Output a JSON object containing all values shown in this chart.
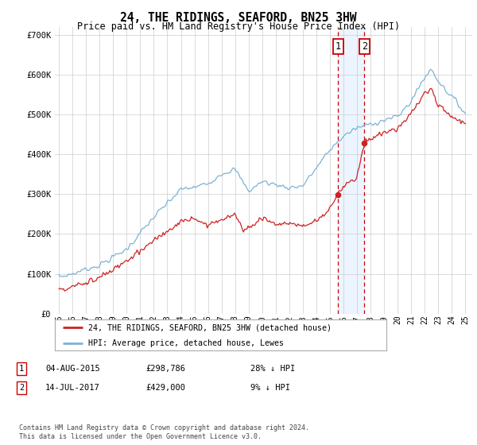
{
  "title": "24, THE RIDINGS, SEAFORD, BN25 3HW",
  "subtitle": "Price paid vs. HM Land Registry's House Price Index (HPI)",
  "ylim": [
    0,
    720000
  ],
  "yticks": [
    0,
    100000,
    200000,
    300000,
    400000,
    500000,
    600000,
    700000
  ],
  "ytick_labels": [
    "£0",
    "£100K",
    "£200K",
    "£300K",
    "£400K",
    "£500K",
    "£600K",
    "£700K"
  ],
  "hpi_color": "#7ab3d4",
  "price_color": "#cc2222",
  "sale1_date": 2015.6,
  "sale1_price": 298786,
  "sale2_date": 2017.54,
  "sale2_price": 429000,
  "legend_entry1": "24, THE RIDINGS, SEAFORD, BN25 3HW (detached house)",
  "legend_entry2": "HPI: Average price, detached house, Lewes",
  "annotation1_label": "1",
  "annotation1_date": "04-AUG-2015",
  "annotation1_price": "£298,786",
  "annotation1_hpi": "28% ↓ HPI",
  "annotation2_label": "2",
  "annotation2_date": "14-JUL-2017",
  "annotation2_price": "£429,000",
  "annotation2_hpi": "9% ↓ HPI",
  "footer": "Contains HM Land Registry data © Crown copyright and database right 2024.\nThis data is licensed under the Open Government Licence v3.0.",
  "bg_color": "#ffffff",
  "grid_color": "#cccccc",
  "shade_color": "#ddeeff"
}
